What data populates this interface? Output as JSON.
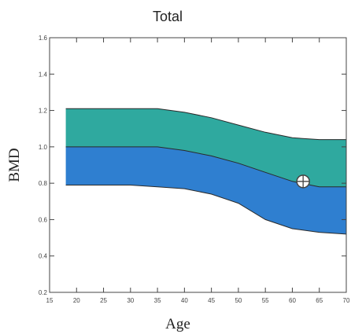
{
  "chart_data": {
    "type": "area",
    "title": "Total",
    "xlabel": "Age",
    "ylabel": "BMD",
    "xlim": [
      15,
      70
    ],
    "ylim": [
      0.2,
      1.6
    ],
    "x_ticks": [
      15,
      20,
      25,
      30,
      35,
      40,
      45,
      50,
      55,
      60,
      65,
      70
    ],
    "y_ticks": [
      0.2,
      0.4,
      0.6,
      0.8,
      1.0,
      1.2,
      1.4,
      1.6
    ],
    "x_tick_labels": [
      "15",
      "20",
      "25",
      "30",
      "35",
      "40",
      "45",
      "50",
      "55",
      "60",
      "65",
      "70"
    ],
    "y_tick_labels": [
      "0.2",
      "0.4",
      "0.6",
      "0.8",
      "1.0",
      "1.2",
      "1.4",
      "1.6"
    ],
    "grid": false,
    "x": [
      18,
      20,
      25,
      30,
      35,
      40,
      45,
      50,
      55,
      60,
      65,
      70
    ],
    "series": [
      {
        "role": "upper",
        "values": [
          1.21,
          1.21,
          1.21,
          1.21,
          1.21,
          1.19,
          1.16,
          1.12,
          1.08,
          1.05,
          1.04,
          1.04
        ]
      },
      {
        "role": "middle",
        "values": [
          1.0,
          1.0,
          1.0,
          1.0,
          1.0,
          0.98,
          0.95,
          0.91,
          0.86,
          0.81,
          0.78,
          0.78
        ]
      },
      {
        "role": "lower",
        "values": [
          0.79,
          0.79,
          0.79,
          0.79,
          0.78,
          0.77,
          0.74,
          0.69,
          0.6,
          0.55,
          0.53,
          0.52
        ]
      }
    ],
    "patient_point": {
      "x": 62,
      "y": 0.81
    },
    "colors": {
      "upper_band": "#2fa99f",
      "lower_band": "#2f7fd0",
      "axes": "#444444",
      "marker_fill": "#ffffff",
      "marker_stroke": "#444444"
    }
  }
}
